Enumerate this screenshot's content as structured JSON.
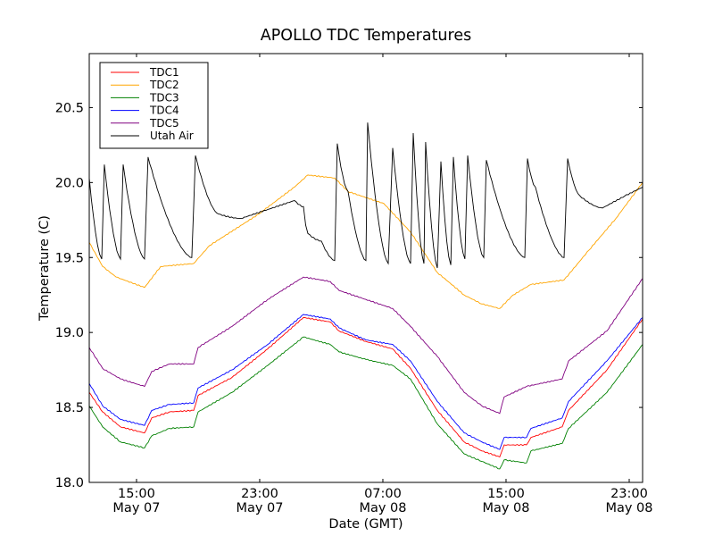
{
  "chart_data": {
    "type": "line",
    "title": "APOLLO TDC Temperatures",
    "xlabel": "Date (GMT)",
    "ylabel": "Temperature (C)",
    "x_units": "hours since May 07 00:00 GMT",
    "xlim": [
      11.93,
      47.87
    ],
    "ylim": [
      18.0,
      20.86
    ],
    "grid": false,
    "legend_position": "top-left",
    "yticks": [
      {
        "value": 18.0,
        "label": "18.0"
      },
      {
        "value": 18.5,
        "label": "18.5"
      },
      {
        "value": 19.0,
        "label": "19.0"
      },
      {
        "value": 19.5,
        "label": "19.5"
      },
      {
        "value": 20.0,
        "label": "20.0"
      },
      {
        "value": 20.5,
        "label": "20.5"
      }
    ],
    "xticks": [
      {
        "value": 15,
        "time": "15:00",
        "date": "May 07"
      },
      {
        "value": 23,
        "time": "23:00",
        "date": "May 07"
      },
      {
        "value": 31,
        "time": "07:00",
        "date": "May 08"
      },
      {
        "value": 39,
        "time": "15:00",
        "date": "May 08"
      },
      {
        "value": 47,
        "time": "23:00",
        "date": "May 08"
      }
    ],
    "series": [
      {
        "name": "TDC1",
        "color": "#ff0000",
        "x": [
          11.93,
          12.8,
          13.96,
          15.52,
          15.99,
          17.14,
          18.71,
          19.0,
          21.2,
          23.52,
          25.84,
          27.58,
          28.16,
          29.9,
          31.64,
          32.8,
          34.54,
          36.28,
          37.43,
          38.59,
          38.88,
          40.33,
          40.62,
          42.65,
          43.06,
          45.55,
          47.87
        ],
        "values": [
          18.6,
          18.47,
          18.37,
          18.33,
          18.43,
          18.47,
          18.48,
          18.58,
          18.7,
          18.89,
          19.1,
          19.07,
          19.01,
          18.94,
          18.89,
          18.76,
          18.48,
          18.27,
          18.21,
          18.17,
          18.25,
          18.25,
          18.3,
          18.37,
          18.48,
          18.75,
          19.09
        ]
      },
      {
        "name": "TDC2",
        "color": "#ffa500",
        "x": [
          11.93,
          12.8,
          13.67,
          15.52,
          16.57,
          18.71,
          19.75,
          22.94,
          25.26,
          26.13,
          27.87,
          28.74,
          31.06,
          32.8,
          34.54,
          36.28,
          37.43,
          38.59,
          39.46,
          40.62,
          42.77,
          44.39,
          46.13,
          47.87
        ],
        "values": [
          19.6,
          19.44,
          19.37,
          19.3,
          19.44,
          19.46,
          19.58,
          19.79,
          19.97,
          20.05,
          20.03,
          19.94,
          19.86,
          19.67,
          19.4,
          19.25,
          19.19,
          19.16,
          19.25,
          19.32,
          19.35,
          19.55,
          19.76,
          20.0
        ]
      },
      {
        "name": "TDC3",
        "color": "#008000",
        "x": [
          11.93,
          12.8,
          13.96,
          15.52,
          15.99,
          17.14,
          18.71,
          19.0,
          21.2,
          23.52,
          25.84,
          27.58,
          28.16,
          29.9,
          31.64,
          32.8,
          34.54,
          36.28,
          37.43,
          38.59,
          38.88,
          40.33,
          40.62,
          42.65,
          43.06,
          45.55,
          47.87
        ],
        "values": [
          18.51,
          18.37,
          18.27,
          18.23,
          18.31,
          18.36,
          18.37,
          18.47,
          18.6,
          18.78,
          18.97,
          18.92,
          18.87,
          18.82,
          18.78,
          18.69,
          18.39,
          18.19,
          18.14,
          18.09,
          18.15,
          18.13,
          18.21,
          18.26,
          18.36,
          18.6,
          18.92
        ]
      },
      {
        "name": "TDC4",
        "color": "#0000ff",
        "x": [
          11.93,
          12.8,
          13.96,
          15.52,
          15.99,
          17.14,
          18.71,
          19.0,
          21.2,
          23.52,
          25.84,
          27.58,
          28.16,
          29.9,
          31.64,
          32.8,
          34.54,
          36.28,
          37.43,
          38.59,
          38.88,
          40.33,
          40.62,
          42.65,
          43.06,
          45.55,
          47.87
        ],
        "values": [
          18.66,
          18.51,
          18.42,
          18.38,
          18.48,
          18.52,
          18.53,
          18.63,
          18.75,
          18.92,
          19.12,
          19.09,
          19.03,
          18.95,
          18.92,
          18.81,
          18.54,
          18.33,
          18.27,
          18.22,
          18.3,
          18.3,
          18.36,
          18.43,
          18.54,
          18.81,
          19.1
        ]
      },
      {
        "name": "TDC5",
        "color": "#800080",
        "x": [
          11.93,
          12.8,
          13.96,
          15.52,
          15.99,
          17.14,
          18.71,
          19.0,
          21.2,
          23.52,
          25.84,
          27.58,
          28.16,
          29.9,
          31.64,
          32.8,
          34.54,
          36.28,
          37.43,
          38.59,
          38.88,
          40.33,
          42.65,
          43.06,
          45.55,
          47.87
        ],
        "values": [
          18.9,
          18.76,
          18.69,
          18.64,
          18.74,
          18.79,
          18.79,
          18.9,
          19.04,
          19.22,
          19.37,
          19.34,
          19.28,
          19.22,
          19.16,
          19.04,
          18.84,
          18.6,
          18.51,
          18.46,
          18.57,
          18.64,
          18.69,
          18.81,
          19.01,
          19.36
        ]
      },
      {
        "name": "Utah Air",
        "color": "#000000",
        "x": [
          11.93,
          12.74,
          12.91,
          13.96,
          14.13,
          15.52,
          15.75,
          18.59,
          18.83,
          20.33,
          21.78,
          23.52,
          25.26,
          25.84,
          26.13,
          27.0,
          27.87,
          28.04,
          28.74,
          29.9,
          30.01,
          31.35,
          31.64,
          32.8,
          32.97,
          33.67,
          33.78,
          34.54,
          34.77,
          35.41,
          35.58,
          36.33,
          36.51,
          37.55,
          37.72,
          40.22,
          40.39,
          40.91,
          42.77,
          43.0,
          43.81,
          45.26,
          46.71,
          47.87
        ],
        "values": [
          20.03,
          19.49,
          20.12,
          19.49,
          20.12,
          19.49,
          20.17,
          19.5,
          20.18,
          19.79,
          19.76,
          19.82,
          19.88,
          19.84,
          19.66,
          19.61,
          19.48,
          20.26,
          19.94,
          19.48,
          20.4,
          19.46,
          20.23,
          19.46,
          20.33,
          19.46,
          20.27,
          19.43,
          20.14,
          19.45,
          20.17,
          19.49,
          20.18,
          19.5,
          20.15,
          19.5,
          20.16,
          19.97,
          19.5,
          20.16,
          19.91,
          19.83,
          19.91,
          19.97
        ]
      }
    ]
  }
}
